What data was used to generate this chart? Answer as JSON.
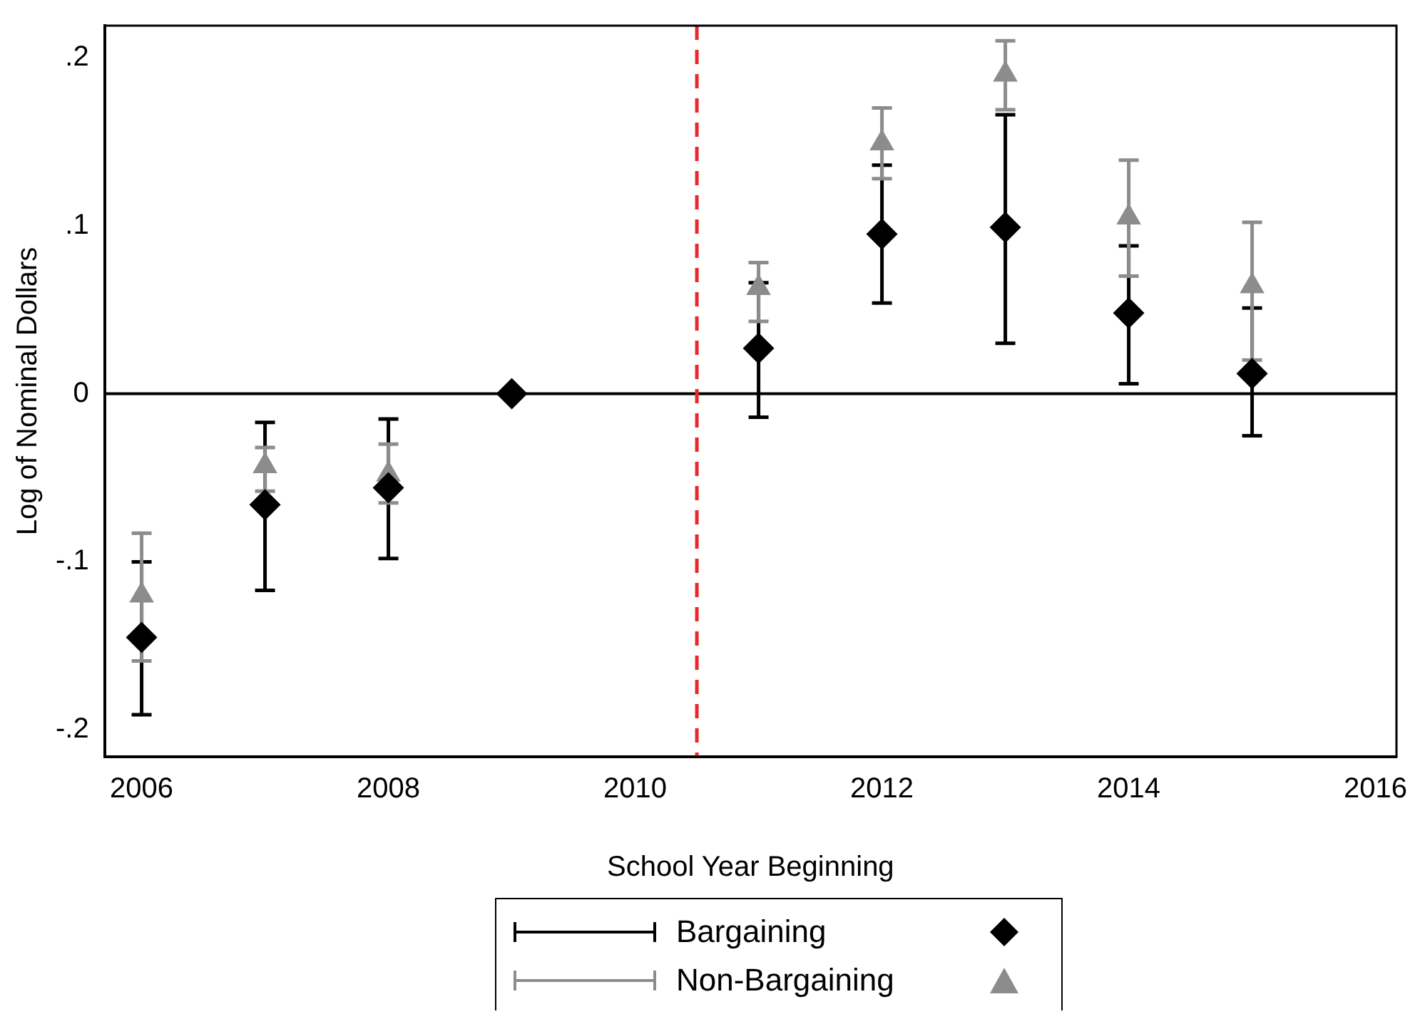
{
  "chart_data": {
    "type": "scatter",
    "xlabel": "School Year Beginning",
    "ylabel": "Log of Nominal Dollars",
    "xlim": [
      2005.7,
      2016.17
    ],
    "xticks": [
      2006,
      2008,
      2010,
      2012,
      2014,
      2016
    ],
    "ylim": [
      -0.216,
      0.219
    ],
    "yticks": [
      {
        "value": -0.2,
        "label": "-.2"
      },
      {
        "value": -0.1,
        "label": "-.1"
      },
      0,
      {
        "value": 0.1,
        "label": ".1"
      },
      {
        "value": 0.2,
        "label": ".2"
      }
    ],
    "grid": false,
    "legend": "bottom",
    "series": [
      {
        "name": "Bargaining",
        "color": "#000000",
        "marker": "diamond",
        "x": [
          2006,
          2007,
          2008,
          2009,
          2011,
          2012,
          2013,
          2014,
          2015
        ],
        "values": [
          -0.145,
          -0.066,
          -0.056,
          0,
          0.027,
          0.095,
          0.099,
          0.048,
          0.012
        ],
        "errors": [
          [
            -0.191,
            -0.1
          ],
          [
            -0.117,
            -0.017
          ],
          [
            -0.098,
            -0.015
          ],
          null,
          [
            -0.014,
            0.066
          ],
          [
            0.054,
            0.136
          ],
          [
            0.03,
            0.166
          ],
          [
            0.006,
            0.088
          ],
          [
            -0.025,
            0.051
          ]
        ]
      },
      {
        "name": "Non-Bargaining",
        "color": "#8c8c8c",
        "marker": "triangle",
        "x": [
          2006,
          2007,
          2008,
          2011,
          2012,
          2013,
          2014,
          2015
        ],
        "values": [
          -0.12,
          -0.043,
          -0.048,
          0.063,
          0.149,
          0.19,
          0.105,
          0.064
        ],
        "errors": [
          [
            -0.159,
            -0.083
          ],
          [
            -0.058,
            -0.032
          ],
          [
            -0.065,
            -0.03
          ],
          [
            0.043,
            0.078
          ],
          [
            0.128,
            0.17
          ],
          [
            0.169,
            0.21
          ],
          [
            0.07,
            0.139
          ],
          [
            0.02,
            0.102
          ]
        ]
      }
    ],
    "ref_lines": [
      {
        "axis": "y",
        "value": 0,
        "color": "#000000",
        "line_style": "solid"
      },
      {
        "axis": "x",
        "value": 2010.5,
        "color": "#e8282b",
        "line_style": "dashed"
      }
    ]
  }
}
